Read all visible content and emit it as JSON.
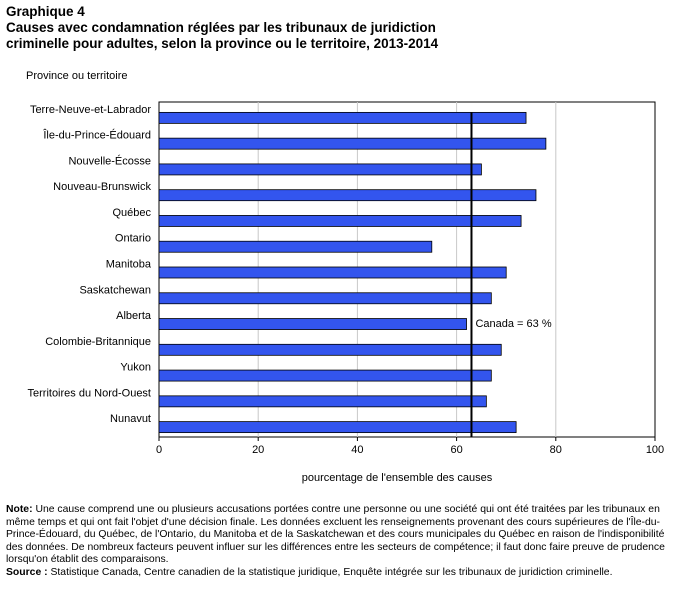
{
  "header": {
    "figure_label": "Graphique 4",
    "title": "Causes avec condamnation réglées par les tribunaux de juridiction\ncriminelle pour adultes, selon la province ou le territoire, 2013-2014"
  },
  "chart_data": {
    "type": "bar",
    "orientation": "horizontal",
    "categories": [
      "Terre-Neuve-et-Labrador",
      "Île-du-Prince-Édouard",
      "Nouvelle-Écosse",
      "Nouveau-Brunswick",
      "Québec",
      "Ontario",
      "Manitoba",
      "Saskatchewan",
      "Alberta",
      "Colombie-Britannique",
      "Yukon",
      "Territoires du Nord-Ouest",
      "Nunavut"
    ],
    "values": [
      74,
      78,
      65,
      76,
      73,
      55,
      70,
      67,
      62,
      69,
      67,
      66,
      72
    ],
    "ylabel": "Province ou territoire",
    "xlabel": "pourcentage de l'ensemble des causes",
    "xlim": [
      0,
      100
    ],
    "xticks": [
      0,
      20,
      40,
      60,
      80,
      100
    ],
    "grid": "vertical",
    "bar_color": "#3355ee",
    "reference_line": {
      "value": 63,
      "label": "Canada = 63 %"
    }
  },
  "notes": {
    "note_label": "Note:",
    "note_text": "Une cause comprend une ou plusieurs accusations portées contre une personne ou une société qui ont été traitées par les tribunaux en même temps et qui ont fait l'objet d'une décision finale. Les données excluent les renseignements provenant des cours supérieures de l'Île-du-Prince-Édouard, du Québec, de l'Ontario, du Manitoba et de la Saskatchewan et des cours municipales du Québec en raison de l'indisponibilité des données. De nombreux facteurs peuvent influer sur les différences entre les secteurs de compétence; il faut donc faire preuve de prudence lorsqu'on établit des comparaisons.",
    "source_label": "Source :",
    "source_text": "Statistique Canada, Centre canadien de la statistique juridique, Enquête intégrée sur les tribunaux de juridiction criminelle."
  }
}
